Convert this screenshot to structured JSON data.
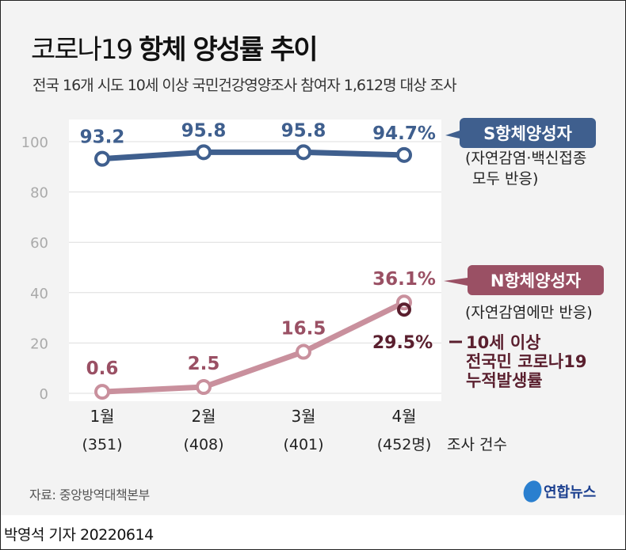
{
  "title_light": "코로나19",
  "title_bold": "항체 양성률 추이",
  "subtitle": "전국 16개 시도 10세 이상 국민건강영양조사 참여자 1,612명 대상 조사",
  "chart_data": {
    "type": "line",
    "categories": [
      "1월",
      "2월",
      "3월",
      "4월"
    ],
    "category_counts": [
      "(351)",
      "(408)",
      "(401)",
      "(452명)"
    ],
    "count_label": "조사 건수",
    "ylim": [
      0,
      100
    ],
    "yticks": [
      "0",
      "20",
      "40",
      "60",
      "80",
      "100"
    ],
    "grid": true,
    "series": [
      {
        "name": "S항체양성자",
        "note": "(자연감염·백신접종 모두 반응)",
        "note_lines": [
          "(자연감염·백신접종",
          "모두 반응)"
        ],
        "values": [
          93.2,
          95.8,
          95.8,
          94.7
        ],
        "labels": [
          "93.2",
          "95.8",
          "95.8",
          "94.7%"
        ],
        "color": "#3f5f8e"
      },
      {
        "name": "N항체양성자",
        "note": "(자연감염에만 반응)",
        "values": [
          0.6,
          2.5,
          16.5,
          36.1
        ],
        "labels": [
          "0.6",
          "2.5",
          "16.5",
          "36.1%"
        ],
        "color": "#c9909d",
        "label_color": "#9a5064"
      }
    ],
    "annotation": {
      "category": "4월",
      "value": 29.5,
      "label": "29.5%",
      "text_lines": [
        "10세 이상",
        "전국민 코로나19",
        "누적발생률"
      ],
      "color": "#5a1f2e"
    }
  },
  "source": "자료: 중앙방역대책본부",
  "logo": "연합뉴스",
  "byline": "박영석 기자 20220614"
}
